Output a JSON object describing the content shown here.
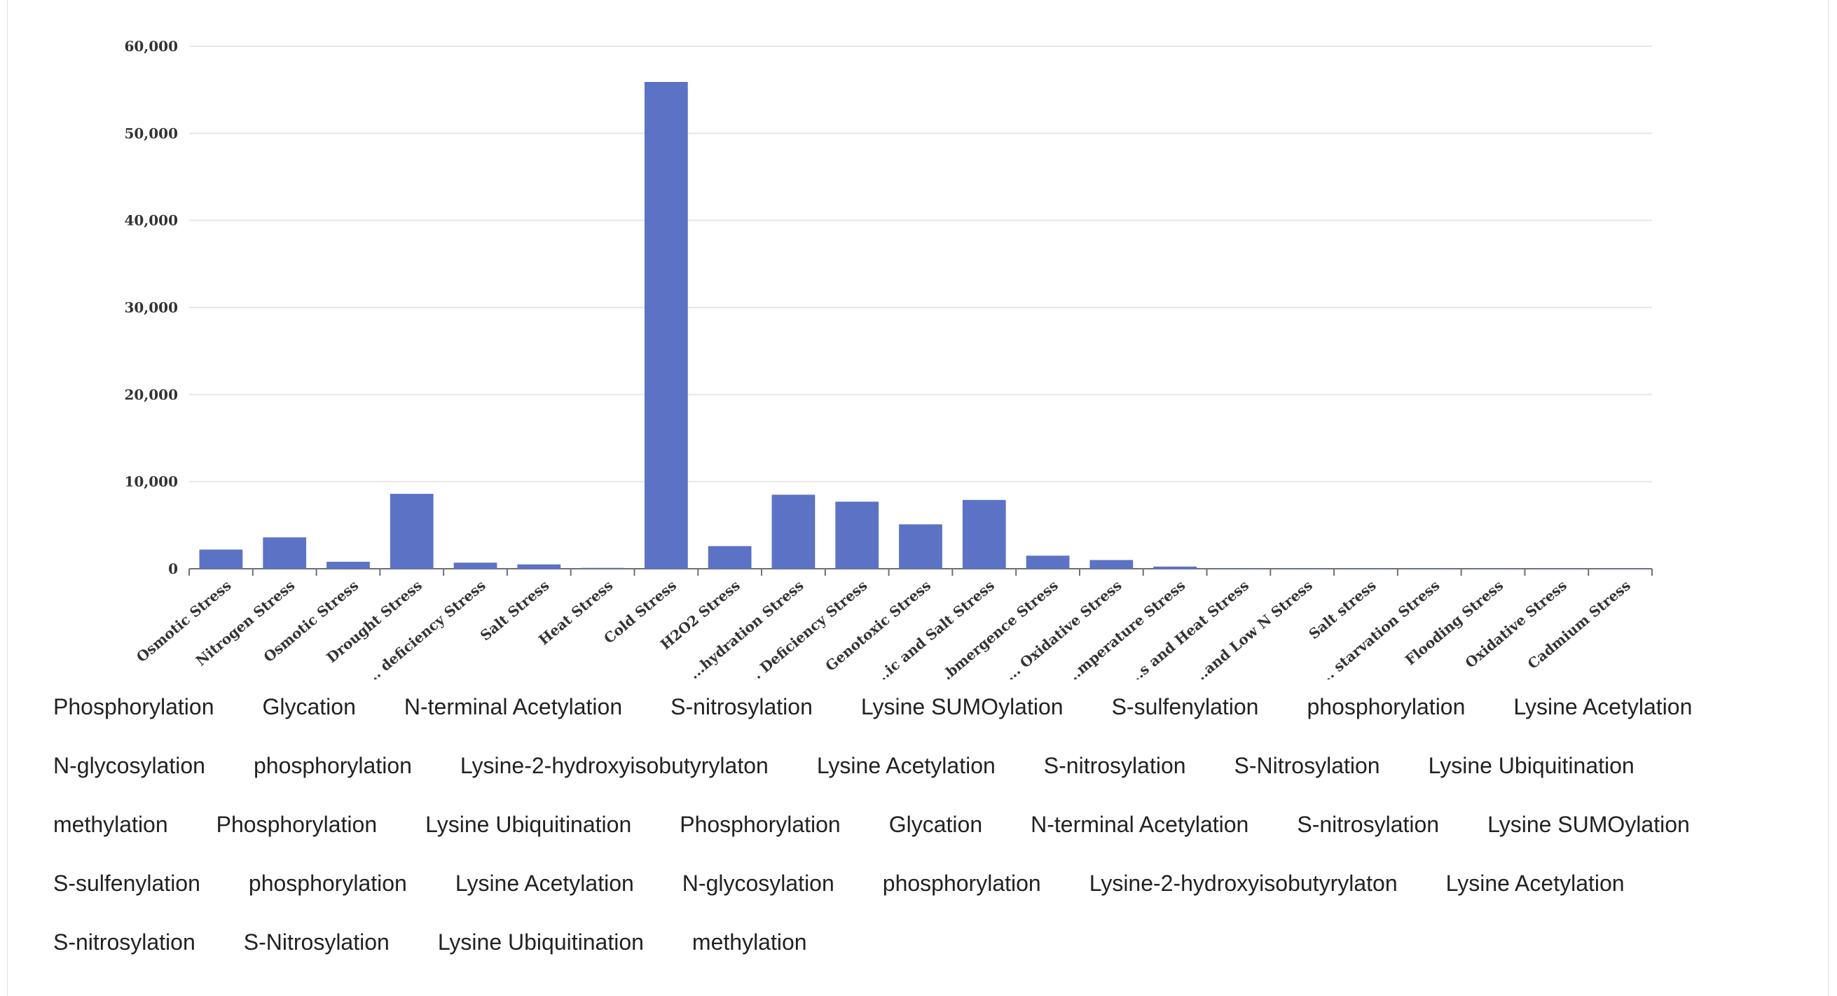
{
  "chart_data": {
    "type": "bar",
    "categories": [
      "Osmotic Stress",
      "Nitrogen Stress",
      "Osmotic Stress",
      "Drought Stress",
      "... deficiency Stress",
      "Salt Stress",
      "Heat Stress",
      "Cold Stress",
      "H2O2 Stress",
      "...hydration Stress",
      "... Deficiency Stress",
      "Genotoxic Stress",
      "...ic and Salt Stress",
      "...bmergence Stress",
      "... Oxidative Stress",
      "...mperature Stress",
      "...s and Heat Stress",
      "...and Low N Stress",
      "Salt stress",
      "... starvation Stress",
      "Flooding Stress",
      "Oxidative Stress",
      "Cadmium Stress"
    ],
    "values": [
      2200,
      3600,
      800,
      8600,
      700,
      500,
      100,
      55900,
      2600,
      8500,
      7700,
      5100,
      7900,
      1500,
      1000,
      250,
      60,
      60,
      60,
      60,
      50,
      40,
      40
    ],
    "ylim": [
      0,
      60000
    ],
    "yticks": [
      0,
      10000,
      20000,
      30000,
      40000,
      50000,
      60000
    ],
    "ytick_labels": [
      "0",
      "10,000",
      "20,000",
      "30,000",
      "40,000",
      "50,000",
      "60,000"
    ],
    "grid": true,
    "bar_color": "#5b72c5",
    "grid_color": "#e6e6e6",
    "axis_color": "#6e7079",
    "legend_placement": "bottom"
  },
  "legend": {
    "items": [
      "Phosphorylation",
      "Glycation",
      "N-terminal Acetylation",
      "S-nitrosylation",
      "Lysine SUMOylation",
      "S-sulfenylation",
      "phosphorylation",
      "Lysine Acetylation",
      "N-glycosylation",
      "phosphorylation",
      "Lysine-2-hydroxyisobutyrylaton",
      "Lysine Acetylation",
      "S-nitrosylation",
      "S-Nitrosylation",
      "Lysine Ubiquitination",
      "methylation",
      "Phosphorylation",
      "Lysine Ubiquitination",
      "Phosphorylation",
      "Glycation",
      "N-terminal Acetylation",
      "S-nitrosylation",
      "Lysine SUMOylation",
      "S-sulfenylation",
      "phosphorylation",
      "Lysine Acetylation",
      "N-glycosylation",
      "phosphorylation",
      "Lysine-2-hydroxyisobutyrylaton",
      "Lysine Acetylation",
      "S-nitrosylation",
      "S-Nitrosylation",
      "Lysine Ubiquitination",
      "methylation"
    ]
  }
}
